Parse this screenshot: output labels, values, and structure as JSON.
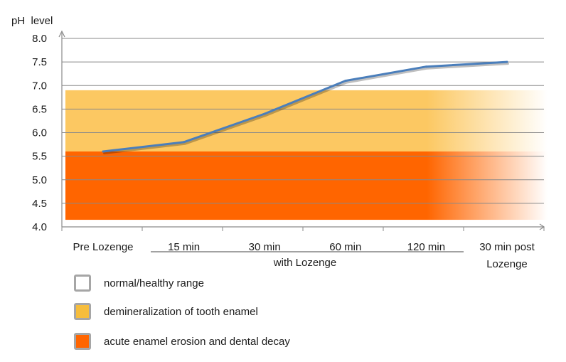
{
  "chart_data": {
    "type": "line",
    "ylabel": "pH  level",
    "ylim": [
      4.0,
      8.0
    ],
    "yticks": [
      4.0,
      4.5,
      5.0,
      5.5,
      6.0,
      6.5,
      7.0,
      7.5,
      8.0
    ],
    "ytick_labels": [
      "4.0",
      "4.5",
      "5.0",
      "5.5",
      "6.0",
      "6.5",
      "7.0",
      "7.5",
      "8.0"
    ],
    "categories": [
      "Pre Lozenge",
      "15 min",
      "30 min",
      "60 min",
      "120 min",
      "30 min post Lozenge"
    ],
    "category_group_label": "with Lozenge",
    "category_group": [
      "15 min",
      "30 min",
      "60 min",
      "120 min"
    ],
    "series": [
      {
        "values": [
          5.6,
          5.8,
          6.4,
          7.1,
          7.4,
          7.5
        ],
        "color": "#4a7ebb"
      }
    ],
    "bands": [
      {
        "name": "demineralization of tooth enamel",
        "from": 5.6,
        "to": 6.9,
        "color": "#fcc862"
      },
      {
        "name": "acute enamel erosion and dental decay",
        "from": 4.15,
        "to": 5.6,
        "color": "#ff6500"
      }
    ],
    "grid": true,
    "legend_position": "bottom-left"
  },
  "legend": [
    {
      "label": "normal/healthy range",
      "color": "#ffffff"
    },
    {
      "label": "demineralization of tooth enamel",
      "color": "#f6bd3c"
    },
    {
      "label": "acute enamel erosion and dental decay",
      "color": "#ff6500"
    }
  ]
}
